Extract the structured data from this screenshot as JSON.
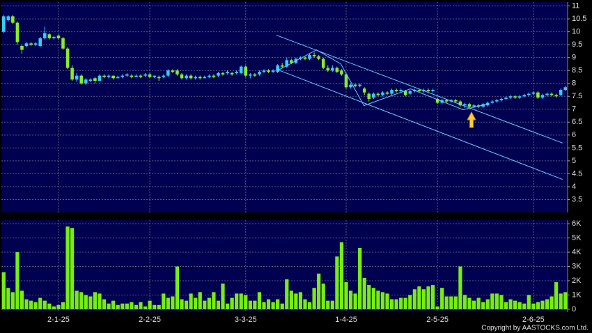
{
  "chart_data": [
    {
      "type": "candlestick",
      "up_color": "#33ccff",
      "down_color": "#88ee22",
      "line_color": "#66ccff",
      "ylim": [
        3,
        11.15
      ],
      "yticks": [
        3.5,
        4,
        4.5,
        5,
        5.5,
        6,
        6.5,
        7,
        7.5,
        8,
        8.5,
        9,
        9.5,
        10,
        10.5,
        11
      ],
      "grid": true,
      "open": [
        10.0,
        10.45,
        10.6,
        10.35,
        9.45,
        9.45,
        9.55,
        9.5,
        9.45,
        9.75,
        9.9,
        9.75,
        9.85,
        9.75,
        9.35,
        8.6,
        8.15,
        8.3,
        8.0,
        8.1,
        8.2,
        8.1,
        8.3,
        8.25,
        8.3,
        8.2,
        8.25,
        8.3,
        8.3,
        8.25,
        8.3,
        8.3,
        8.35,
        8.25,
        8.25,
        8.25,
        8.3,
        8.5,
        8.5,
        8.35,
        8.2,
        8.3,
        8.2,
        8.25,
        8.2,
        8.25,
        8.3,
        8.3,
        8.4,
        8.4,
        8.4,
        8.4,
        8.4,
        8.65,
        8.3,
        8.35,
        8.35,
        8.45,
        8.5,
        8.45,
        8.45,
        8.7,
        8.65,
        8.9,
        8.8,
        8.95,
        9.0,
        8.95,
        9.1,
        9.05,
        8.95,
        8.6,
        8.5,
        8.6,
        8.5,
        8.35,
        7.85,
        7.95,
        7.9,
        7.8,
        7.6,
        7.45,
        7.6,
        7.55,
        7.65,
        7.6,
        7.75,
        7.7,
        7.7,
        7.6,
        7.7,
        7.75,
        7.7,
        7.75,
        7.7,
        7.4,
        7.25,
        7.35,
        7.3,
        7.35,
        7.3,
        7.15,
        7.2,
        7.1,
        7.15,
        7.1,
        7.15,
        7.25,
        7.3,
        7.35,
        7.4,
        7.45,
        7.5,
        7.45,
        7.5,
        7.55,
        7.6,
        7.65,
        7.45,
        7.55,
        7.6,
        7.55,
        7.55,
        7.75
      ],
      "high": [
        10.65,
        10.65,
        10.65,
        10.4,
        9.5,
        9.6,
        9.6,
        9.6,
        9.8,
        10.2,
        9.95,
        9.85,
        9.9,
        9.8,
        9.4,
        8.7,
        8.4,
        8.35,
        8.2,
        8.2,
        8.25,
        8.35,
        8.35,
        8.35,
        8.3,
        8.3,
        8.35,
        8.4,
        8.35,
        8.35,
        8.35,
        8.4,
        8.4,
        8.3,
        8.3,
        8.35,
        8.55,
        8.55,
        8.55,
        8.4,
        8.35,
        8.35,
        8.3,
        8.3,
        8.3,
        8.35,
        8.35,
        8.45,
        8.45,
        8.5,
        8.45,
        8.5,
        8.7,
        8.7,
        8.4,
        8.4,
        8.5,
        8.55,
        8.55,
        8.55,
        8.75,
        8.8,
        9.0,
        8.95,
        9.0,
        9.05,
        9.05,
        9.15,
        9.2,
        9.1,
        9.0,
        8.7,
        8.7,
        8.65,
        8.55,
        8.4,
        8.0,
        8.0,
        8.0,
        7.85,
        7.65,
        7.65,
        7.65,
        7.7,
        7.7,
        7.8,
        7.8,
        7.8,
        7.75,
        7.75,
        7.8,
        7.8,
        7.8,
        7.8,
        7.8,
        7.45,
        7.4,
        7.4,
        7.4,
        7.4,
        7.35,
        7.25,
        7.25,
        7.2,
        7.2,
        7.25,
        7.3,
        7.35,
        7.4,
        7.45,
        7.5,
        7.55,
        7.55,
        7.55,
        7.6,
        7.65,
        7.7,
        7.7,
        7.6,
        7.65,
        7.65,
        7.6,
        7.8,
        7.9
      ],
      "low": [
        9.95,
        10.4,
        10.3,
        9.5,
        9.15,
        9.4,
        9.45,
        9.45,
        9.4,
        9.7,
        9.7,
        9.7,
        9.7,
        9.3,
        8.55,
        8.1,
        8.05,
        7.95,
        7.95,
        8.05,
        8.0,
        8.1,
        8.2,
        8.2,
        8.15,
        8.2,
        8.2,
        8.25,
        8.2,
        8.25,
        8.2,
        8.25,
        8.2,
        8.2,
        8.1,
        8.2,
        8.25,
        8.4,
        8.3,
        8.15,
        8.15,
        8.15,
        8.15,
        8.15,
        8.2,
        8.2,
        8.2,
        8.25,
        8.3,
        8.35,
        8.3,
        8.35,
        8.35,
        8.25,
        8.2,
        8.25,
        8.3,
        8.4,
        8.4,
        8.4,
        8.4,
        8.6,
        8.6,
        8.75,
        8.75,
        8.9,
        8.9,
        8.9,
        9.0,
        8.9,
        8.55,
        8.45,
        8.45,
        8.4,
        8.3,
        7.8,
        7.8,
        7.85,
        7.85,
        7.55,
        7.3,
        7.4,
        7.5,
        7.5,
        7.55,
        7.55,
        7.65,
        7.65,
        7.5,
        7.55,
        7.65,
        7.65,
        7.65,
        7.65,
        7.65,
        7.2,
        7.2,
        7.25,
        7.25,
        7.25,
        7.1,
        7.05,
        7.05,
        7.05,
        7.05,
        7.05,
        7.1,
        7.2,
        7.25,
        7.3,
        7.35,
        7.4,
        7.4,
        7.4,
        7.45,
        7.5,
        7.55,
        7.4,
        7.4,
        7.5,
        7.5,
        7.45,
        7.5,
        7.7
      ],
      "close": [
        10.6,
        10.6,
        10.35,
        9.6,
        9.3,
        9.55,
        9.5,
        9.55,
        9.75,
        9.95,
        9.75,
        9.8,
        9.75,
        9.35,
        8.6,
        8.15,
        8.3,
        8.0,
        8.15,
        8.15,
        8.1,
        8.3,
        8.25,
        8.3,
        8.2,
        8.25,
        8.3,
        8.35,
        8.25,
        8.3,
        8.25,
        8.35,
        8.25,
        8.3,
        8.2,
        8.3,
        8.5,
        8.45,
        8.35,
        8.2,
        8.3,
        8.2,
        8.25,
        8.2,
        8.25,
        8.3,
        8.25,
        8.4,
        8.35,
        8.45,
        8.35,
        8.45,
        8.65,
        8.3,
        8.35,
        8.3,
        8.45,
        8.5,
        8.45,
        8.5,
        8.7,
        8.65,
        8.9,
        8.8,
        8.95,
        9.0,
        8.95,
        9.1,
        9.05,
        8.95,
        8.6,
        8.5,
        8.6,
        8.45,
        8.35,
        7.85,
        7.95,
        7.9,
        7.95,
        7.65,
        7.4,
        7.6,
        7.55,
        7.65,
        7.6,
        7.75,
        7.7,
        7.75,
        7.55,
        7.7,
        7.75,
        7.7,
        7.75,
        7.7,
        7.75,
        7.25,
        7.35,
        7.3,
        7.35,
        7.3,
        7.15,
        7.2,
        7.1,
        7.15,
        7.1,
        7.2,
        7.25,
        7.3,
        7.35,
        7.4,
        7.45,
        7.5,
        7.45,
        7.5,
        7.55,
        7.6,
        7.65,
        7.45,
        7.55,
        7.6,
        7.55,
        7.5,
        7.75,
        7.85
      ],
      "trend_lines": [
        {
          "x": [
            59.7,
            122.4
          ],
          "y": [
            9.87,
            5.69
          ]
        },
        {
          "x": [
            59.7,
            122.4
          ],
          "y": [
            8.55,
            4.28
          ]
        },
        {
          "x": [
            60,
            68.5,
            73.8,
            78.9,
            89.1,
            100.6,
            105.9
          ],
          "y": [
            8.5,
            9.3,
            8.76,
            7.14,
            7.79,
            6.98,
            7.2
          ]
        }
      ]
    },
    {
      "type": "bar",
      "color": "#77ee11",
      "ylim": [
        -200,
        6250
      ],
      "yticks": [
        0,
        {
          "value": 1000,
          "label": "1K"
        },
        {
          "value": 2000,
          "label": "2K"
        },
        {
          "value": 3000,
          "label": "3K"
        },
        {
          "value": 4000,
          "label": "4K"
        },
        {
          "value": 5000,
          "label": "5K"
        },
        {
          "value": 6000,
          "label": "6K"
        }
      ],
      "grid": true,
      "categories": [
        null,
        null,
        null,
        null,
        null,
        null,
        null,
        null,
        null,
        null,
        null,
        null,
        "2-1-25",
        null,
        null,
        null,
        null,
        null,
        null,
        null,
        null,
        null,
        null,
        null,
        null,
        null,
        null,
        null,
        null,
        null,
        null,
        null,
        "2-2-25",
        null,
        null,
        null,
        null,
        null,
        null,
        null,
        null,
        null,
        null,
        null,
        null,
        null,
        null,
        null,
        null,
        null,
        null,
        null,
        null,
        "3-3-25",
        null,
        null,
        null,
        null,
        null,
        null,
        null,
        null,
        null,
        null,
        null,
        null,
        null,
        null,
        null,
        null,
        null,
        null,
        null,
        null,
        null,
        "1-4-25",
        null,
        null,
        null,
        null,
        null,
        null,
        null,
        null,
        null,
        null,
        null,
        null,
        null,
        null,
        null,
        null,
        null,
        null,
        null,
        "2-5-25",
        null,
        null,
        null,
        null,
        null,
        null,
        null,
        null,
        null,
        null,
        null,
        null,
        null,
        null,
        null,
        null,
        null,
        null,
        null,
        null,
        "2-6-25",
        null,
        null,
        null,
        null,
        null,
        null,
        null
      ],
      "values": [
        2600,
        1500,
        1200,
        4000,
        1300,
        700,
        600,
        500,
        800,
        600,
        400,
        200,
        300,
        500,
        5800,
        5700,
        1300,
        1200,
        1000,
        900,
        1200,
        1100,
        700,
        400,
        600,
        300,
        400,
        400,
        500,
        300,
        500,
        200,
        600,
        300,
        300,
        1100,
        800,
        900,
        3000,
        700,
        600,
        1100,
        800,
        1200,
        600,
        800,
        1200,
        600,
        1800,
        400,
        800,
        1100,
        1100,
        1000,
        600,
        600,
        1200,
        500,
        700,
        500,
        700,
        400,
        2100,
        1300,
        1100,
        1200,
        700,
        500,
        1500,
        2500,
        1800,
        600,
        600,
        3700,
        4700,
        1900,
        1300,
        1100,
        4300,
        2200,
        1700,
        1500,
        1300,
        1200,
        1100,
        700,
        700,
        800,
        800,
        1000,
        1400,
        1600,
        1400,
        1600,
        1700,
        200,
        1500,
        900,
        900,
        900,
        3000,
        1000,
        800,
        600,
        800,
        500,
        700,
        1100,
        1100,
        1000,
        500,
        700,
        600,
        500,
        400,
        1000,
        400,
        500,
        600,
        700,
        900,
        1900,
        1100,
        1200
      ]
    }
  ],
  "footer": "Copyright by AASTOCKS.com Ltd."
}
